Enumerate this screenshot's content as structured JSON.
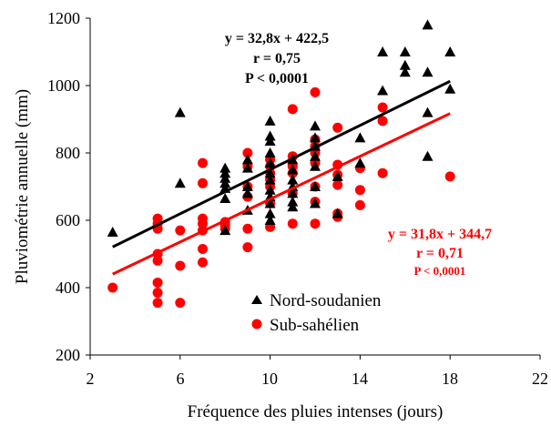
{
  "chart_data": {
    "type": "scatter",
    "xlabel": "Fréquence des pluies intenses (jours)",
    "ylabel": "Pluviométrie annuelle (mm)",
    "xlim": [
      2,
      22
    ],
    "ylim": [
      200,
      1200
    ],
    "xticks": [
      "2",
      "6",
      "10",
      "14",
      "18",
      "22"
    ],
    "yticks": [
      "200",
      "400",
      "600",
      "800",
      "1000",
      "1200"
    ],
    "grid": false,
    "legend_position": "bottom-center",
    "series": [
      {
        "name": "Nord-soudanien",
        "marker": "triangle",
        "color": "#000000",
        "points": [
          [
            3,
            565
          ],
          [
            6,
            920
          ],
          [
            6,
            710
          ],
          [
            8,
            755
          ],
          [
            8,
            740
          ],
          [
            8,
            725
          ],
          [
            8,
            710
          ],
          [
            8,
            695
          ],
          [
            8,
            665
          ],
          [
            8,
            570
          ],
          [
            9,
            780
          ],
          [
            9,
            755
          ],
          [
            9,
            700
          ],
          [
            9,
            680
          ],
          [
            9,
            630
          ],
          [
            10,
            895
          ],
          [
            10,
            850
          ],
          [
            10,
            835
          ],
          [
            10,
            800
          ],
          [
            10,
            770
          ],
          [
            10,
            740
          ],
          [
            10,
            720
          ],
          [
            10,
            690
          ],
          [
            10,
            670
          ],
          [
            10,
            650
          ],
          [
            10,
            620
          ],
          [
            10,
            600
          ],
          [
            11,
            780
          ],
          [
            11,
            750
          ],
          [
            11,
            720
          ],
          [
            11,
            700
          ],
          [
            11,
            680
          ],
          [
            11,
            655
          ],
          [
            11,
            640
          ],
          [
            12,
            880
          ],
          [
            12,
            845
          ],
          [
            12,
            820
          ],
          [
            12,
            790
          ],
          [
            12,
            760
          ],
          [
            12,
            700
          ],
          [
            12,
            650
          ],
          [
            13,
            730
          ],
          [
            13,
            620
          ],
          [
            14,
            845
          ],
          [
            14,
            770
          ],
          [
            15,
            1100
          ],
          [
            15,
            985
          ],
          [
            16,
            1100
          ],
          [
            16,
            1060
          ],
          [
            16,
            1040
          ],
          [
            17,
            1180
          ],
          [
            17,
            1040
          ],
          [
            17,
            920
          ],
          [
            17,
            790
          ],
          [
            18,
            1100
          ],
          [
            18,
            990
          ]
        ]
      },
      {
        "name": "Sub-sahélien",
        "marker": "circle",
        "color": "#ff0000",
        "points": [
          [
            3,
            400
          ],
          [
            5,
            605
          ],
          [
            5,
            590
          ],
          [
            5,
            575
          ],
          [
            5,
            500
          ],
          [
            5,
            480
          ],
          [
            5,
            415
          ],
          [
            5,
            385
          ],
          [
            5,
            355
          ],
          [
            6,
            570
          ],
          [
            6,
            465
          ],
          [
            6,
            355
          ],
          [
            7,
            770
          ],
          [
            7,
            710
          ],
          [
            7,
            605
          ],
          [
            7,
            590
          ],
          [
            7,
            570
          ],
          [
            7,
            515
          ],
          [
            7,
            475
          ],
          [
            8,
            595
          ],
          [
            8,
            585
          ],
          [
            8,
            575
          ],
          [
            9,
            800
          ],
          [
            9,
            760
          ],
          [
            9,
            700
          ],
          [
            9,
            670
          ],
          [
            9,
            575
          ],
          [
            9,
            520
          ],
          [
            10,
            780
          ],
          [
            10,
            760
          ],
          [
            10,
            740
          ],
          [
            10,
            720
          ],
          [
            10,
            700
          ],
          [
            10,
            650
          ],
          [
            10,
            580
          ],
          [
            11,
            930
          ],
          [
            11,
            790
          ],
          [
            11,
            760
          ],
          [
            11,
            740
          ],
          [
            11,
            680
          ],
          [
            11,
            590
          ],
          [
            12,
            980
          ],
          [
            12,
            840
          ],
          [
            12,
            820
          ],
          [
            12,
            800
          ],
          [
            12,
            770
          ],
          [
            12,
            700
          ],
          [
            12,
            655
          ],
          [
            12,
            590
          ],
          [
            13,
            875
          ],
          [
            13,
            765
          ],
          [
            13,
            735
          ],
          [
            13,
            705
          ],
          [
            13,
            620
          ],
          [
            13,
            610
          ],
          [
            14,
            755
          ],
          [
            14,
            690
          ],
          [
            14,
            645
          ],
          [
            15,
            935
          ],
          [
            15,
            895
          ],
          [
            15,
            740
          ],
          [
            18,
            730
          ]
        ]
      }
    ],
    "trendlines": [
      {
        "series": "Nord-soudanien",
        "slope": 32.8,
        "intercept": 422.5,
        "x_range": [
          3,
          18
        ],
        "color": "#000000",
        "labels": [
          "y = 32,8x + 422,5",
          "r = 0,75",
          "P < 0,0001"
        ]
      },
      {
        "series": "Sub-sahélien",
        "slope": 31.8,
        "intercept": 344.7,
        "x_range": [
          3,
          18
        ],
        "color": "#ff0000",
        "labels": [
          "y = 31,8x + 344,7",
          "r = 0,71",
          "P < 0,0001"
        ]
      }
    ]
  }
}
